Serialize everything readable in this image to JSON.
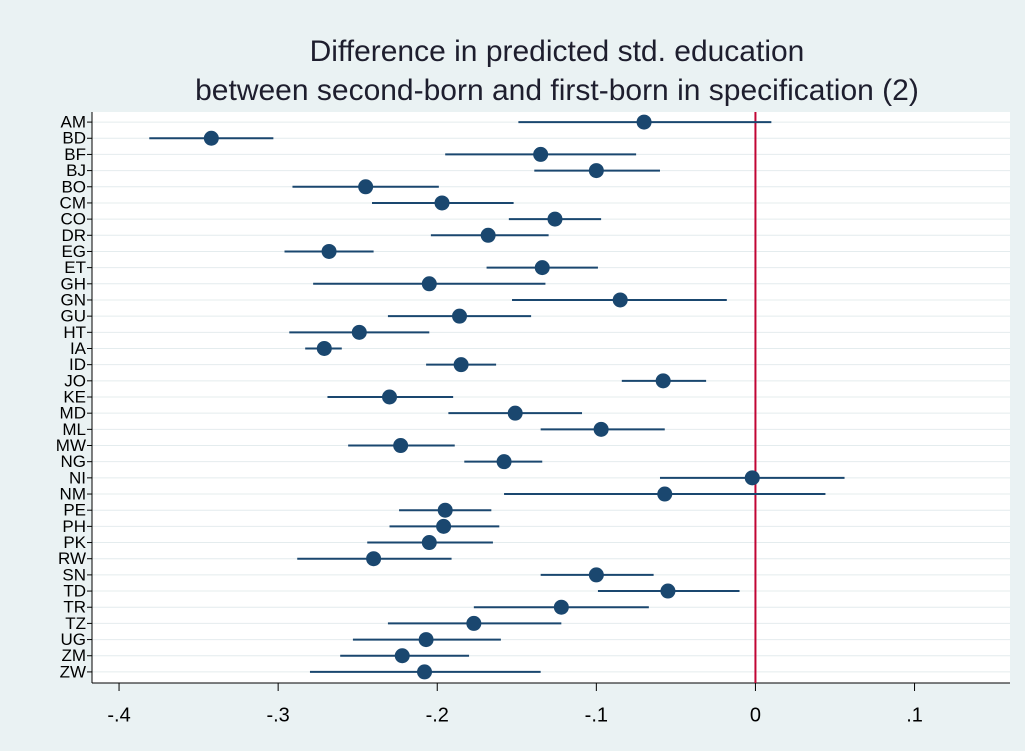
{
  "chart_data": {
    "type": "coefplot",
    "title": [
      "Difference in predicted std. education",
      "between second-born and first-born in specification (2)"
    ],
    "categories": [
      "AM",
      "BD",
      "BF",
      "BJ",
      "BO",
      "CM",
      "CO",
      "DR",
      "EG",
      "ET",
      "GH",
      "GN",
      "GU",
      "HT",
      "IA",
      "ID",
      "JO",
      "KE",
      "MD",
      "ML",
      "MW",
      "NG",
      "NI",
      "NM",
      "PE",
      "PH",
      "PK",
      "RW",
      "SN",
      "TD",
      "TR",
      "TZ",
      "UG",
      "ZM",
      "ZW"
    ],
    "values": [
      -0.07,
      -0.342,
      -0.135,
      -0.1,
      -0.245,
      -0.197,
      -0.126,
      -0.168,
      -0.268,
      -0.134,
      -0.205,
      -0.085,
      -0.186,
      -0.249,
      -0.271,
      -0.185,
      -0.058,
      -0.23,
      -0.151,
      -0.097,
      -0.223,
      -0.158,
      -0.002,
      -0.057,
      -0.195,
      -0.196,
      -0.205,
      -0.24,
      -0.1,
      -0.055,
      -0.122,
      -0.177,
      -0.207,
      -0.222,
      -0.208
    ],
    "lower": [
      -0.149,
      -0.381,
      -0.195,
      -0.139,
      -0.291,
      -0.241,
      -0.155,
      -0.204,
      -0.296,
      -0.169,
      -0.278,
      -0.153,
      -0.231,
      -0.293,
      -0.283,
      -0.207,
      -0.084,
      -0.269,
      -0.193,
      -0.135,
      -0.256,
      -0.183,
      -0.06,
      -0.158,
      -0.224,
      -0.23,
      -0.244,
      -0.288,
      -0.135,
      -0.099,
      -0.177,
      -0.231,
      -0.253,
      -0.261,
      -0.28
    ],
    "upper": [
      0.01,
      -0.303,
      -0.075,
      -0.06,
      -0.199,
      -0.152,
      -0.097,
      -0.13,
      -0.24,
      -0.099,
      -0.132,
      -0.018,
      -0.141,
      -0.205,
      -0.26,
      -0.163,
      -0.031,
      -0.19,
      -0.109,
      -0.057,
      -0.189,
      -0.134,
      0.056,
      0.044,
      -0.166,
      -0.161,
      -0.165,
      -0.191,
      -0.064,
      -0.01,
      -0.067,
      -0.122,
      -0.16,
      -0.18,
      -0.135
    ],
    "color": "#1a476f",
    "refline": 0,
    "refline_color": "#c10534",
    "xlim": [
      -0.417,
      0.16
    ],
    "xticks": [
      {
        "value": -0.4,
        "label": "-.4"
      },
      {
        "value": -0.3,
        "label": "-.3"
      },
      {
        "value": -0.2,
        "label": "-.2"
      },
      {
        "value": -0.1,
        "label": "-.1"
      },
      0,
      {
        "value": 0.1,
        "label": ".1"
      }
    ],
    "grid": true
  }
}
